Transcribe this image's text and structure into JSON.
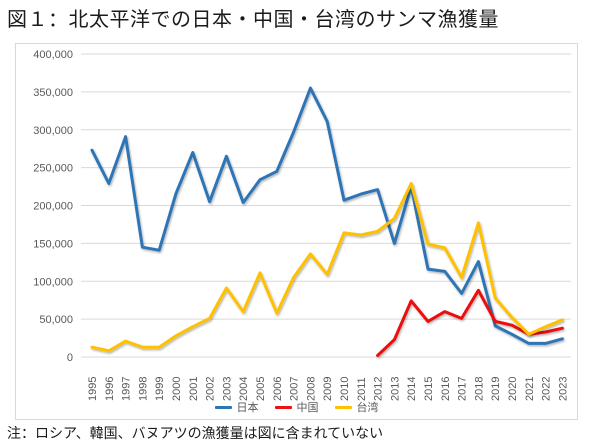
{
  "page": {
    "title": "図１：北太平洋での日本・中国・台湾のサンマ漁獲量",
    "note": "注：ロシア、韓国、バヌアツの漁獲量は図に含まれていない"
  },
  "colors": {
    "japan": "#2e75b6",
    "china": "#ee1111",
    "taiwan": "#ffc000",
    "gridline": "#d9d9d9",
    "tick_text": "#595959",
    "chart_border": "#d9d9d9"
  },
  "chart_data": {
    "type": "line",
    "title": "図１：北太平洋での日本・中国・台湾のサンマ漁獲量",
    "xlabel": "",
    "ylabel": "",
    "x": [
      1995,
      1996,
      1997,
      1998,
      1999,
      2000,
      2001,
      2002,
      2003,
      2004,
      2005,
      2006,
      2007,
      2008,
      2009,
      2010,
      2011,
      2012,
      2013,
      2014,
      2015,
      2016,
      2017,
      2018,
      2019,
      2020,
      2021,
      2022,
      2023
    ],
    "series": [
      {
        "name": "日本",
        "color": "#2e75b6",
        "values": [
          273000,
          229000,
          291000,
          145000,
          141000,
          216000,
          270000,
          205000,
          265000,
          204000,
          234000,
          245000,
          297000,
          355000,
          311000,
          207000,
          215000,
          221000,
          150000,
          225000,
          116000,
          113000,
          84000,
          126000,
          41000,
          30000,
          18000,
          18000,
          24000
        ]
      },
      {
        "name": "中国",
        "color": "#ee1111",
        "values": [
          null,
          null,
          null,
          null,
          null,
          null,
          null,
          null,
          null,
          null,
          null,
          null,
          null,
          null,
          null,
          null,
          null,
          2000,
          23000,
          74000,
          47000,
          60000,
          51000,
          88000,
          47000,
          42000,
          30000,
          33000,
          38000
        ]
      },
      {
        "name": "台湾",
        "color": "#ffc000",
        "values": [
          13000,
          8000,
          21000,
          13000,
          13000,
          28000,
          40000,
          51000,
          91000,
          60000,
          111000,
          58000,
          105000,
          136000,
          109000,
          164000,
          161000,
          166000,
          183000,
          229000,
          149000,
          144000,
          105000,
          177000,
          78000,
          52000,
          30000,
          40000,
          49000
        ]
      }
    ],
    "ylim": [
      0,
      400000
    ],
    "ytick_step": 50000,
    "ytick_labels": [
      "0",
      "50,000",
      "100,000",
      "150,000",
      "200,000",
      "250,000",
      "300,000",
      "350,000",
      "400,000"
    ],
    "grid": "horizontal",
    "legend_position": "bottom"
  }
}
